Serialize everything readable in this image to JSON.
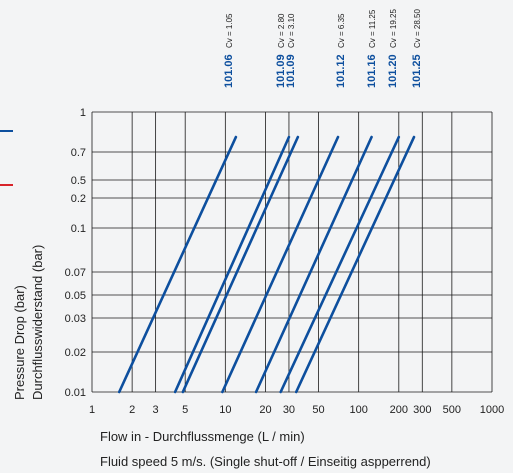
{
  "colors": {
    "line": "#0d4f9e",
    "grid": "#1a1a1a",
    "accent_red": "#d8232a"
  },
  "chart_data": {
    "type": "line",
    "scale": "log-log",
    "xlabel": "Flow in - Durchflussmenge (L / min)",
    "footnote": "Fluid speed 5 m/s. (Single shut-off / Einseitig aspperrend)",
    "ylabel": [
      "Pressure Drop (bar)",
      "Durchflusswiderstand (bar)"
    ],
    "x_ticks": [
      {
        "v": 1,
        "label": "1"
      },
      {
        "v": 2,
        "label": "2"
      },
      {
        "v": 3,
        "label": "3"
      },
      {
        "v": 5,
        "label": "5"
      },
      {
        "v": 10,
        "label": "10"
      },
      {
        "v": 20,
        "label": "20"
      },
      {
        "v": 30,
        "label": "30"
      },
      {
        "v": 50,
        "label": "50"
      },
      {
        "v": 100,
        "label": "100"
      },
      {
        "v": 200,
        "label": "200"
      },
      {
        "v": 300,
        "label": "300"
      },
      {
        "v": 500,
        "label": "500"
      },
      {
        "v": 1000,
        "label": "1000"
      }
    ],
    "y_ticks": [
      {
        "v": 0.01,
        "label": "0.01"
      },
      {
        "v": 0.02,
        "label": "0.02"
      },
      {
        "v": 0.03,
        "label": "0.03"
      },
      {
        "v": 0.05,
        "label": "0.05"
      },
      {
        "v": 0.07,
        "label": "0.07"
      },
      {
        "v": 0.1,
        "label": "0.1"
      },
      {
        "v": 0.2,
        "label": "0.2"
      },
      {
        "v": 0.5,
        "label": "0.5"
      },
      {
        "v": 0.7,
        "label": "0.7"
      },
      {
        "v": 1,
        "label": "1"
      }
    ],
    "series": [
      {
        "name": "101.06",
        "cv": "Cv = 1.05",
        "points": [
          [
            1.6,
            0.01
          ],
          [
            12,
            0.8
          ]
        ]
      },
      {
        "name": "101.09",
        "cv": "Cv = 2.80",
        "points": [
          [
            4.2,
            0.01
          ],
          [
            30,
            0.8
          ]
        ]
      },
      {
        "name": "101.09",
        "cv": "Cv = 3.10",
        "points": [
          [
            4.8,
            0.01
          ],
          [
            35,
            0.8
          ]
        ]
      },
      {
        "name": "101.12",
        "cv": "Cv = 6.35",
        "points": [
          [
            9.5,
            0.01
          ],
          [
            70,
            0.8
          ]
        ]
      },
      {
        "name": "101.16",
        "cv": "Cv = 11.25",
        "points": [
          [
            17,
            0.01
          ],
          [
            125,
            0.8
          ]
        ]
      },
      {
        "name": "101.20",
        "cv": "Cv = 19.25",
        "points": [
          [
            26,
            0.01
          ],
          [
            200,
            0.8
          ]
        ]
      },
      {
        "name": "101.25",
        "cv": "Cv = 28.50",
        "points": [
          [
            34,
            0.01
          ],
          [
            260,
            0.8
          ]
        ]
      }
    ]
  }
}
